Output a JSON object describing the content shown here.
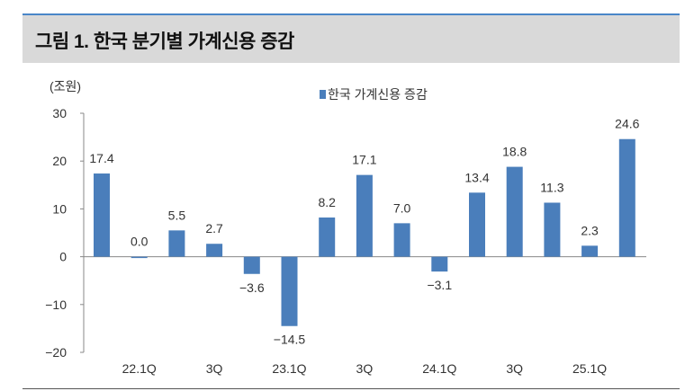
{
  "header": {
    "title": "그림 1. 한국 분기별 가계신용 증감"
  },
  "chart_data": {
    "type": "bar",
    "title": "",
    "ylabel": "(조원)",
    "xlabel": "",
    "ylim": [
      -20,
      30
    ],
    "yticks": [
      30,
      20,
      10,
      0,
      -10,
      -20
    ],
    "ytick_labels": [
      "30",
      "20",
      "10",
      "0",
      "−10",
      "−20"
    ],
    "legend": {
      "position": "top-center"
    },
    "categories": [
      "",
      "22.1Q",
      "",
      "3Q",
      "",
      "23.1Q",
      "",
      "3Q",
      "",
      "24.1Q",
      "",
      "3Q",
      "",
      "25.1Q",
      ""
    ],
    "series": [
      {
        "name": "한국 가계신용 증감",
        "color": "#4a7ebb",
        "values": [
          17.4,
          0.0,
          5.5,
          2.7,
          -3.6,
          -14.5,
          8.2,
          17.1,
          7.0,
          -3.1,
          13.4,
          18.8,
          11.3,
          2.3,
          24.6
        ],
        "labels": [
          "17.4",
          "0.0",
          "5.5",
          "2.7",
          "−3.6",
          "−14.5",
          "8.2",
          "17.1",
          "7.0",
          "−3.1",
          "13.4",
          "18.8",
          "11.3",
          "2.3",
          "24.6"
        ]
      }
    ],
    "grid": false
  }
}
